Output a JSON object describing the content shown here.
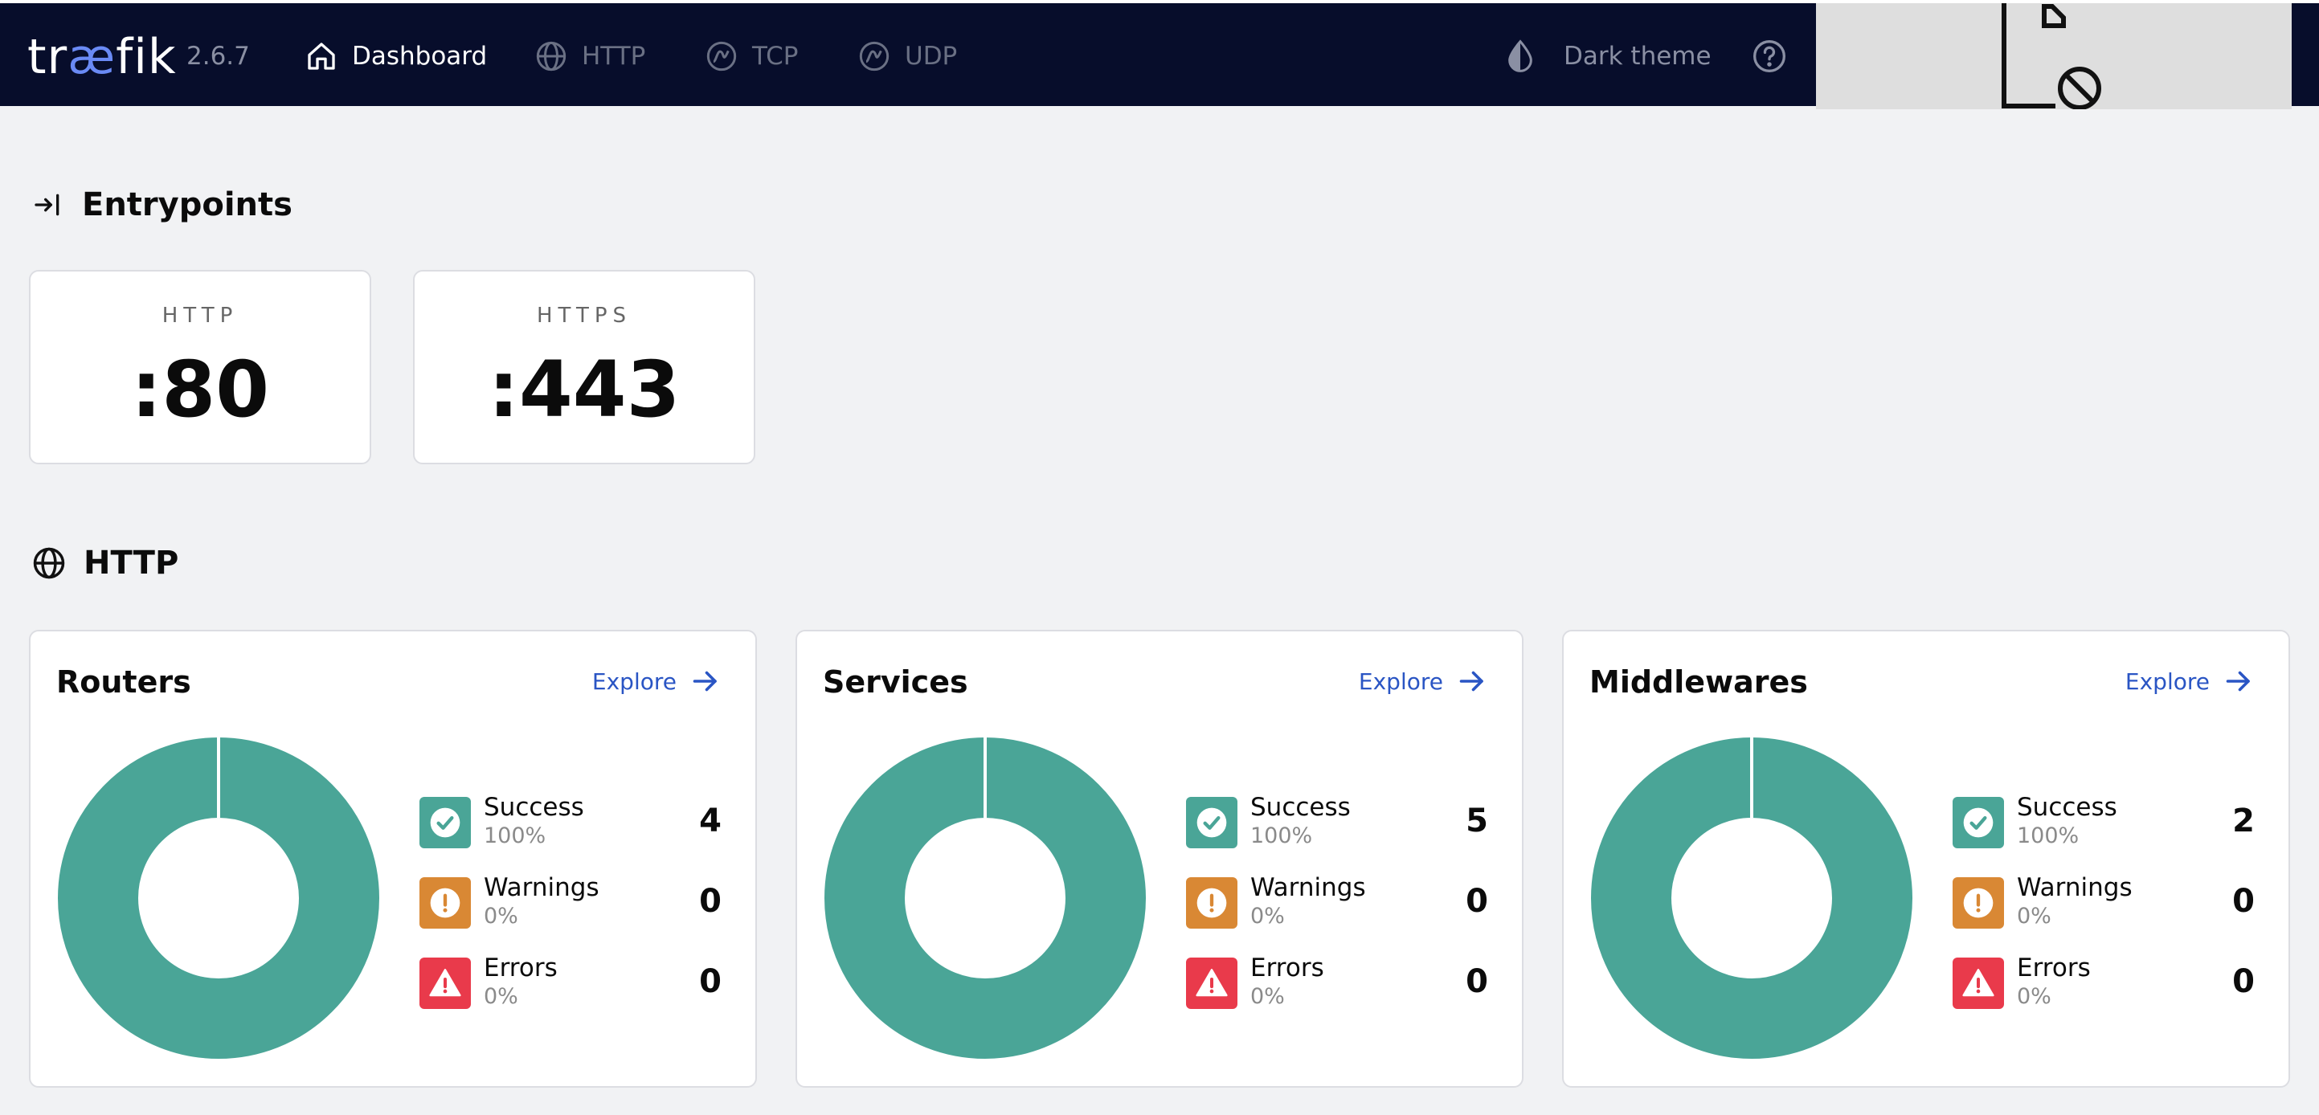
{
  "header": {
    "logo_left": "tr",
    "logo_mid": "æ",
    "logo_right": "fik",
    "version": "2.6.7",
    "nav": [
      {
        "label": "Dashboard",
        "icon": "home-icon",
        "active": true
      },
      {
        "label": "HTTP",
        "icon": "globe-icon",
        "active": false
      },
      {
        "label": "TCP",
        "icon": "tcp-icon",
        "active": false
      },
      {
        "label": "UDP",
        "icon": "udp-icon",
        "active": false
      }
    ],
    "theme_label": "Dark theme"
  },
  "entrypoints": {
    "title": "Entrypoints",
    "items": [
      {
        "name": "HTTP",
        "port": ":80"
      },
      {
        "name": "HTTPS",
        "port": ":443"
      }
    ]
  },
  "http": {
    "title": "HTTP",
    "explore_label": "Explore",
    "panels": [
      {
        "title": "Routers",
        "stats": [
          {
            "label": "Success",
            "percent": "100%",
            "count": "4"
          },
          {
            "label": "Warnings",
            "percent": "0%",
            "count": "0"
          },
          {
            "label": "Errors",
            "percent": "0%",
            "count": "0"
          }
        ]
      },
      {
        "title": "Services",
        "stats": [
          {
            "label": "Success",
            "percent": "100%",
            "count": "5"
          },
          {
            "label": "Warnings",
            "percent": "0%",
            "count": "0"
          },
          {
            "label": "Errors",
            "percent": "0%",
            "count": "0"
          }
        ]
      },
      {
        "title": "Middlewares",
        "stats": [
          {
            "label": "Success",
            "percent": "100%",
            "count": "2"
          },
          {
            "label": "Warnings",
            "percent": "0%",
            "count": "0"
          },
          {
            "label": "Errors",
            "percent": "0%",
            "count": "0"
          }
        ]
      }
    ]
  },
  "colors": {
    "header_bg": "#070d2b",
    "success": "#4aa597",
    "warning": "#d98834",
    "error": "#e93a4b",
    "link": "#2a55c4"
  }
}
